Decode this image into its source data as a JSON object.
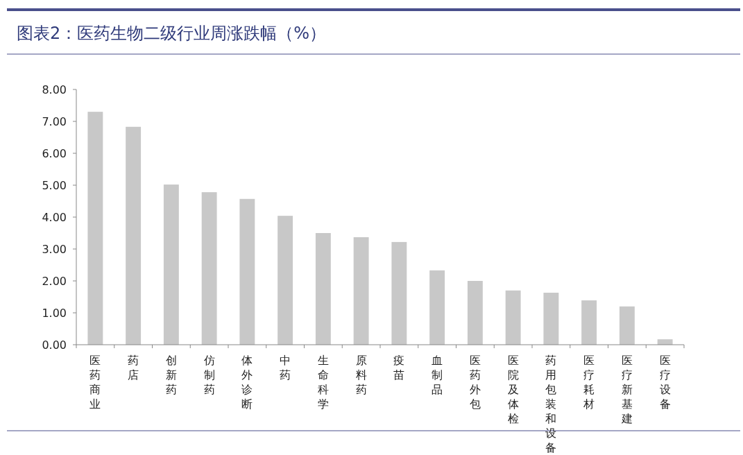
{
  "chart_data": {
    "type": "bar",
    "title": "图表2：医药生物二级行业周涨跌幅（%）",
    "categories": [
      "医药商业",
      "药店",
      "创新药",
      "仿制药",
      "体外诊断",
      "中药",
      "生命科学",
      "原料药",
      "疫苗",
      "血制品",
      "医药外包",
      "医院及体检",
      "药用包装和设备",
      "医疗耗材",
      "医疗新基建",
      "医疗设备"
    ],
    "values": [
      7.3,
      6.83,
      5.02,
      4.78,
      4.57,
      4.04,
      3.5,
      3.37,
      3.22,
      2.33,
      2.0,
      1.7,
      1.63,
      1.39,
      1.2,
      0.17
    ],
    "color": "#c8c8c8",
    "ylim": [
      0,
      8
    ],
    "yticks": [
      {
        "value": 0,
        "label": "0.00"
      },
      {
        "value": 1,
        "label": "1.00"
      },
      {
        "value": 2,
        "label": "2.00"
      },
      {
        "value": 3,
        "label": "3.00"
      },
      {
        "value": 4,
        "label": "4.00"
      },
      {
        "value": 5,
        "label": "5.00"
      },
      {
        "value": 6,
        "label": "6.00"
      },
      {
        "value": 7,
        "label": "7.00"
      },
      {
        "value": 8,
        "label": "8.00"
      }
    ],
    "grid": false
  }
}
